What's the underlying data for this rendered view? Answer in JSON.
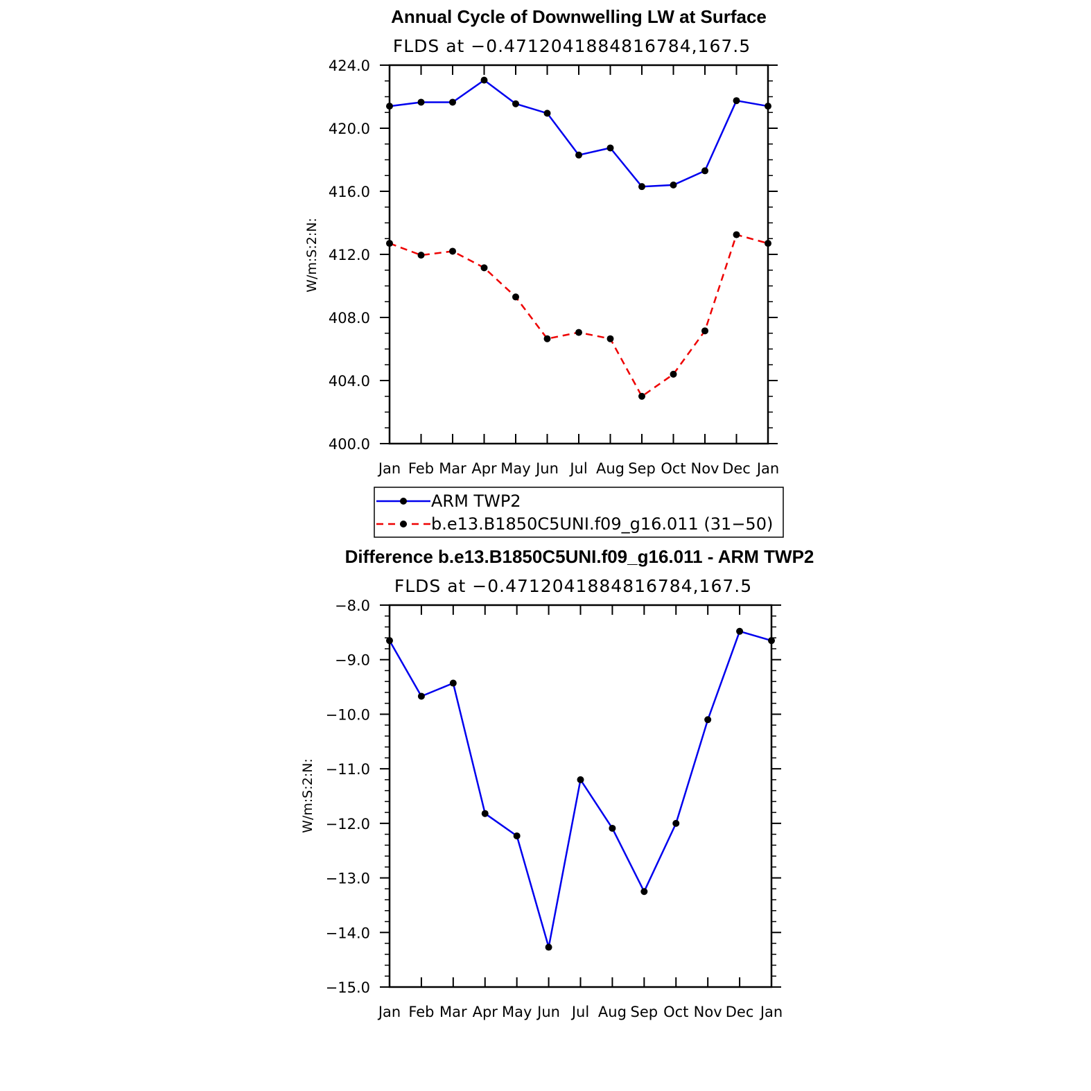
{
  "chart_data": [
    {
      "type": "line",
      "title": "Annual Cycle of Downwelling LW at Surface",
      "subtitle": "FLDS at −0.4712041884816784,167.5",
      "ylabel": "W/m:S:2:N:",
      "categories": [
        "Jan",
        "Feb",
        "Mar",
        "Apr",
        "May",
        "Jun",
        "Jul",
        "Aug",
        "Sep",
        "Oct",
        "Nov",
        "Dec",
        "Jan"
      ],
      "yticks": [
        "400.0",
        "404.0",
        "408.0",
        "412.0",
        "416.0",
        "420.0",
        "424.0"
      ],
      "ylim": [
        400,
        424
      ],
      "series": [
        {
          "name": "ARM TWP2",
          "color": "#0000ee",
          "dash": "solid",
          "values": [
            421.4,
            421.65,
            421.65,
            423.05,
            421.55,
            420.95,
            418.3,
            418.75,
            416.3,
            416.4,
            417.3,
            421.75,
            421.4
          ]
        },
        {
          "name": "b.e13.B1850C5UNI.f09_g16.011 (31−50)",
          "color": "#ee0000",
          "dash": "dashed",
          "values": [
            412.7,
            411.95,
            412.2,
            411.15,
            409.3,
            406.65,
            407.05,
            406.65,
            403.0,
            404.4,
            407.15,
            413.25,
            412.7
          ]
        }
      ],
      "legend": "below"
    },
    {
      "type": "line",
      "title": "Difference b.e13.B1850C5UNI.f09_g16.011 - ARM TWP2",
      "subtitle": "FLDS at −0.4712041884816784,167.5",
      "ylabel": "W/m:S:2:N:",
      "categories": [
        "Jan",
        "Feb",
        "Mar",
        "Apr",
        "May",
        "Jun",
        "Jul",
        "Aug",
        "Sep",
        "Oct",
        "Nov",
        "Dec",
        "Jan"
      ],
      "yticks": [
        "−15.0",
        "−14.0",
        "−13.0",
        "−12.0",
        "−11.0",
        "−10.0",
        "−9.0",
        "−8.0"
      ],
      "ylim": [
        -15,
        -8
      ],
      "series": [
        {
          "color": "#0000ee",
          "dash": "solid",
          "values": [
            -8.65,
            -9.67,
            -9.43,
            -11.82,
            -12.23,
            -14.27,
            -11.2,
            -12.09,
            -13.25,
            -12.0,
            -10.1,
            -8.48,
            -8.65
          ]
        }
      ]
    }
  ]
}
